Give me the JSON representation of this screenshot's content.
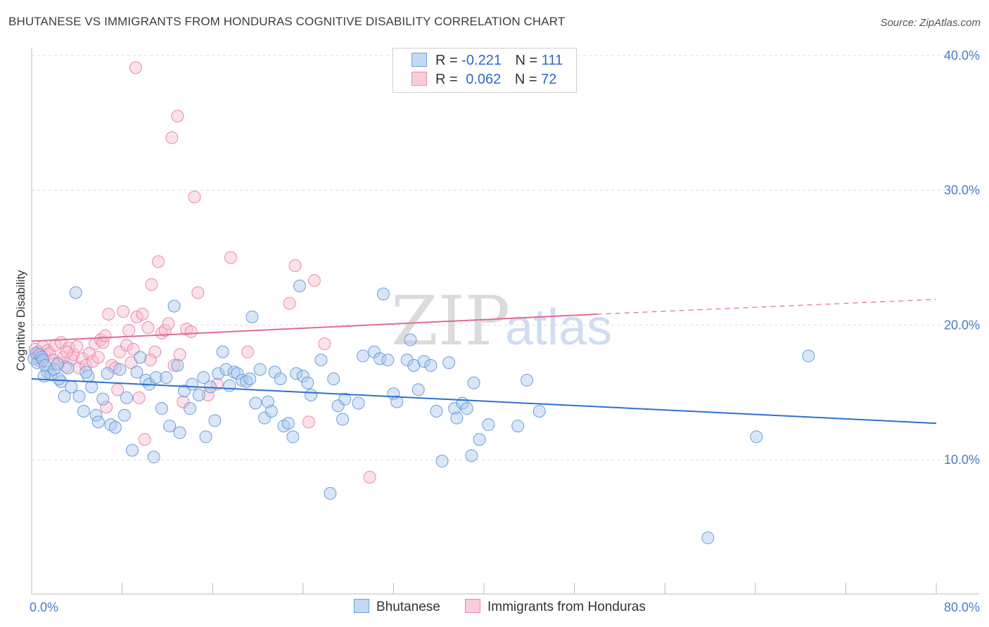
{
  "title": "BHUTANESE VS IMMIGRANTS FROM HONDURAS COGNITIVE DISABILITY CORRELATION CHART",
  "source": "Source: ZipAtlas.com",
  "watermark": {
    "zip": "ZIP",
    "atlas": "atlas"
  },
  "legend": {
    "r_label": "R =",
    "n_label": "N =",
    "rows": [
      {
        "r": "-0.221",
        "n": "111"
      },
      {
        "r": "0.062",
        "n": "72"
      }
    ]
  },
  "chart_data": {
    "type": "scatter",
    "title": "BHUTANESE VS IMMIGRANTS FROM HONDURAS COGNITIVE DISABILITY CORRELATION CHART",
    "xlabel": "",
    "ylabel": "Cognitive Disability",
    "xlim": [
      0,
      80
    ],
    "ylim": [
      0,
      42
    ],
    "x_tick_labels": [
      "0.0%",
      "80.0%"
    ],
    "y_ticks": [
      10,
      20,
      30,
      40
    ],
    "y_tick_labels": [
      "10.0%",
      "20.0%",
      "30.0%",
      "40.0%"
    ],
    "colors": {
      "blue_fill": "#a8c8f0",
      "blue_stroke": "#6f9ed8",
      "blue_line": "#2e6fd0",
      "pink_fill": "#f7bcd0",
      "pink_stroke": "#e98aaa",
      "pink_line": "#e06b96",
      "grid": "#dddddd",
      "axis_text": "#4a7cc9"
    },
    "series": [
      {
        "name": "Bhutanese",
        "r": -0.221,
        "n": 111,
        "trend": {
          "x0": 0,
          "y0": 16.0,
          "x1": 80,
          "y1": 12.7
        },
        "points": [
          [
            0.2,
            17.5
          ],
          [
            0.4,
            17.9
          ],
          [
            0.5,
            17.2
          ],
          [
            0.7,
            17.8
          ],
          [
            0.9,
            17.6
          ],
          [
            1.0,
            17.4
          ],
          [
            1.2,
            17.0
          ],
          [
            1.4,
            16.5
          ],
          [
            1.7,
            16.3
          ],
          [
            2.0,
            16.7
          ],
          [
            2.3,
            17.1
          ],
          [
            2.6,
            15.8
          ],
          [
            2.9,
            14.7
          ],
          [
            3.2,
            16.8
          ],
          [
            3.5,
            15.4
          ],
          [
            3.9,
            22.4
          ],
          [
            4.2,
            14.7
          ],
          [
            4.6,
            13.6
          ],
          [
            5.0,
            16.2
          ],
          [
            5.3,
            15.4
          ],
          [
            5.7,
            13.3
          ],
          [
            5.9,
            12.8
          ],
          [
            6.3,
            14.5
          ],
          [
            6.7,
            16.4
          ],
          [
            7.0,
            12.6
          ],
          [
            7.4,
            12.4
          ],
          [
            7.8,
            16.7
          ],
          [
            8.2,
            13.3
          ],
          [
            8.4,
            14.6
          ],
          [
            8.9,
            10.7
          ],
          [
            9.3,
            16.5
          ],
          [
            9.6,
            17.6
          ],
          [
            10.1,
            15.9
          ],
          [
            10.4,
            15.6
          ],
          [
            10.8,
            10.2
          ],
          [
            11.0,
            16.1
          ],
          [
            11.5,
            13.8
          ],
          [
            11.9,
            16.1
          ],
          [
            12.2,
            12.5
          ],
          [
            12.6,
            21.4
          ],
          [
            12.9,
            17.0
          ],
          [
            13.1,
            12.0
          ],
          [
            13.5,
            15.1
          ],
          [
            14.0,
            13.8
          ],
          [
            14.2,
            15.6
          ],
          [
            14.8,
            14.8
          ],
          [
            15.2,
            16.1
          ],
          [
            15.4,
            11.7
          ],
          [
            15.8,
            15.4
          ],
          [
            16.2,
            12.9
          ],
          [
            16.5,
            16.4
          ],
          [
            16.9,
            18.0
          ],
          [
            17.2,
            16.7
          ],
          [
            17.5,
            15.5
          ],
          [
            17.9,
            16.5
          ],
          [
            18.2,
            16.4
          ],
          [
            18.6,
            15.9
          ],
          [
            19.0,
            15.8
          ],
          [
            19.3,
            16.0
          ],
          [
            19.5,
            20.6
          ],
          [
            19.8,
            14.2
          ],
          [
            20.2,
            16.7
          ],
          [
            20.6,
            13.1
          ],
          [
            20.9,
            14.3
          ],
          [
            21.2,
            13.6
          ],
          [
            21.5,
            16.5
          ],
          [
            22.0,
            16.0
          ],
          [
            22.3,
            12.5
          ],
          [
            22.7,
            12.7
          ],
          [
            23.1,
            11.7
          ],
          [
            23.4,
            16.4
          ],
          [
            23.7,
            22.9
          ],
          [
            24.0,
            16.2
          ],
          [
            24.4,
            15.7
          ],
          [
            24.7,
            14.8
          ],
          [
            25.6,
            17.4
          ],
          [
            26.4,
            7.5
          ],
          [
            26.7,
            16.0
          ],
          [
            27.1,
            14.0
          ],
          [
            27.5,
            13.0
          ],
          [
            27.7,
            14.5
          ],
          [
            28.9,
            14.2
          ],
          [
            29.3,
            17.7
          ],
          [
            30.3,
            18.0
          ],
          [
            30.8,
            17.5
          ],
          [
            31.1,
            22.3
          ],
          [
            31.5,
            17.4
          ],
          [
            32.0,
            14.9
          ],
          [
            32.3,
            14.3
          ],
          [
            33.2,
            17.4
          ],
          [
            33.5,
            18.9
          ],
          [
            33.8,
            17.0
          ],
          [
            34.2,
            15.2
          ],
          [
            34.7,
            17.3
          ],
          [
            35.3,
            17.0
          ],
          [
            35.8,
            13.6
          ],
          [
            36.3,
            9.9
          ],
          [
            36.9,
            17.2
          ],
          [
            37.4,
            13.8
          ],
          [
            37.6,
            13.1
          ],
          [
            38.1,
            14.2
          ],
          [
            38.5,
            13.8
          ],
          [
            38.9,
            10.3
          ],
          [
            39.1,
            15.7
          ],
          [
            39.6,
            11.5
          ],
          [
            40.4,
            12.6
          ],
          [
            43.0,
            12.5
          ],
          [
            43.8,
            15.9
          ],
          [
            44.9,
            13.6
          ],
          [
            59.8,
            4.2
          ],
          [
            64.1,
            11.7
          ],
          [
            68.7,
            17.7
          ],
          [
            1.1,
            16.2
          ],
          [
            2.4,
            16.0
          ],
          [
            4.8,
            16.5
          ]
        ]
      },
      {
        "name": "Immigrants from Honduras",
        "r": 0.062,
        "n": 72,
        "trend": {
          "x0": 0,
          "y0": 18.8,
          "x1": 50,
          "y1": 20.8,
          "dash_x1": 80,
          "dash_y1": 21.9
        },
        "points": [
          [
            0.3,
            18.2
          ],
          [
            0.5,
            17.6
          ],
          [
            0.6,
            18.0
          ],
          [
            0.8,
            17.3
          ],
          [
            1.0,
            18.4
          ],
          [
            1.2,
            17.7
          ],
          [
            1.4,
            18.1
          ],
          [
            1.6,
            17.9
          ],
          [
            1.9,
            17.4
          ],
          [
            2.1,
            18.5
          ],
          [
            2.4,
            17.2
          ],
          [
            2.6,
            18.7
          ],
          [
            2.8,
            17.6
          ],
          [
            3.0,
            16.9
          ],
          [
            3.3,
            18.3
          ],
          [
            3.5,
            17.5
          ],
          [
            3.7,
            17.8
          ],
          [
            4.0,
            18.4
          ],
          [
            4.2,
            16.8
          ],
          [
            4.5,
            17.5
          ],
          [
            4.8,
            17.0
          ],
          [
            5.1,
            17.9
          ],
          [
            5.4,
            17.3
          ],
          [
            5.6,
            18.6
          ],
          [
            5.9,
            17.6
          ],
          [
            6.1,
            18.9
          ],
          [
            6.3,
            18.7
          ],
          [
            6.5,
            19.2
          ],
          [
            6.8,
            20.8
          ],
          [
            7.1,
            17.0
          ],
          [
            7.4,
            16.8
          ],
          [
            7.6,
            15.2
          ],
          [
            7.8,
            18.0
          ],
          [
            8.1,
            21.0
          ],
          [
            8.4,
            18.5
          ],
          [
            8.6,
            19.6
          ],
          [
            8.8,
            17.2
          ],
          [
            9.0,
            18.2
          ],
          [
            9.3,
            20.6
          ],
          [
            9.5,
            14.6
          ],
          [
            9.8,
            20.8
          ],
          [
            10.0,
            11.5
          ],
          [
            10.3,
            19.8
          ],
          [
            10.6,
            23.0
          ],
          [
            10.9,
            18.0
          ],
          [
            11.2,
            24.7
          ],
          [
            11.5,
            19.4
          ],
          [
            11.8,
            19.6
          ],
          [
            12.1,
            20.1
          ],
          [
            12.4,
            33.9
          ],
          [
            12.6,
            17.0
          ],
          [
            12.9,
            35.5
          ],
          [
            13.1,
            17.8
          ],
          [
            13.4,
            14.3
          ],
          [
            13.7,
            19.7
          ],
          [
            14.1,
            19.5
          ],
          [
            14.4,
            29.5
          ],
          [
            14.7,
            22.4
          ],
          [
            15.6,
            14.8
          ],
          [
            16.4,
            15.6
          ],
          [
            17.6,
            25.0
          ],
          [
            19.1,
            18.0
          ],
          [
            22.8,
            21.6
          ],
          [
            23.3,
            24.4
          ],
          [
            24.5,
            12.8
          ],
          [
            25.0,
            23.3
          ],
          [
            25.9,
            18.6
          ],
          [
            29.9,
            8.7
          ],
          [
            9.2,
            39.1
          ],
          [
            3.1,
            18.0
          ],
          [
            6.6,
            13.9
          ],
          [
            10.5,
            17.4
          ]
        ]
      }
    ]
  },
  "bottom_legend": [
    "Bhutanese",
    "Immigrants from Honduras"
  ]
}
